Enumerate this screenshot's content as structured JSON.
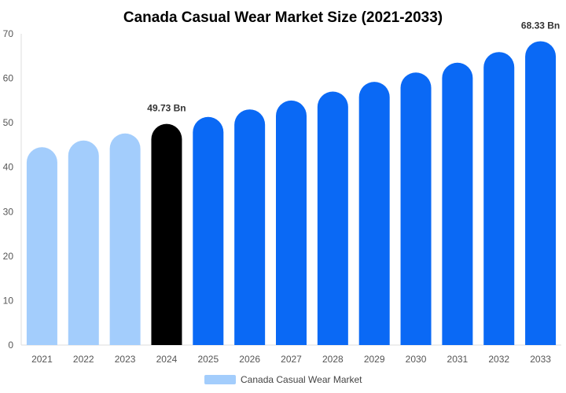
{
  "chart_data": {
    "type": "bar",
    "title": "Canada Casual Wear Market Size (2021-2033)",
    "categories": [
      "2021",
      "2022",
      "2023",
      "2024",
      "2025",
      "2026",
      "2027",
      "2028",
      "2029",
      "2030",
      "2031",
      "2032",
      "2033"
    ],
    "values": [
      44.5,
      46.0,
      47.6,
      49.73,
      51.3,
      53.0,
      55.0,
      57.0,
      59.2,
      61.3,
      63.5,
      65.9,
      68.33
    ],
    "series": [
      {
        "name": "Canada Casual Wear Market",
        "values": [
          44.5,
          46.0,
          47.6,
          49.73,
          51.3,
          53.0,
          55.0,
          57.0,
          59.2,
          61.3,
          63.5,
          65.9,
          68.33
        ]
      }
    ],
    "bar_colors": [
      "#a3cdfc",
      "#a3cdfc",
      "#a3cdfc",
      "#000000",
      "#0a69f5",
      "#0a69f5",
      "#0a69f5",
      "#0a69f5",
      "#0a69f5",
      "#0a69f5",
      "#0a69f5",
      "#0a69f5",
      "#0a69f5"
    ],
    "data_labels": [
      {
        "category": "2024",
        "text": "49.73 Bn"
      },
      {
        "category": "2033",
        "text": "68.33 Bn"
      }
    ],
    "ylim": [
      0,
      70
    ],
    "yticks": [
      0,
      10,
      20,
      30,
      40,
      50,
      60,
      70
    ],
    "xlabel": "",
    "ylabel": "",
    "grid": false,
    "legend": {
      "placement": "bottom",
      "label": "Canada Casual Wear Market",
      "color": "#a3cdfc"
    }
  }
}
